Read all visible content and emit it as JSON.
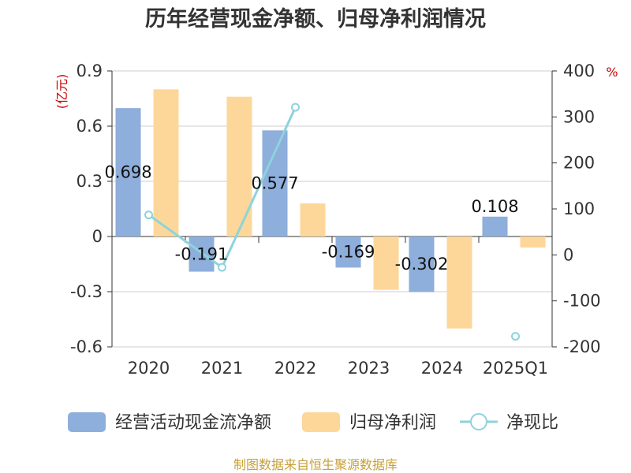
{
  "chart_data": {
    "type": "bar",
    "title": "历年经营现金净额、归母净利润情况",
    "categories": [
      "2020",
      "2021",
      "2022",
      "2023",
      "2024",
      "2025Q1"
    ],
    "left_axis": {
      "unit": "(亿元)",
      "ylim": [
        -0.6,
        0.9
      ],
      "ticks": [
        "0.9",
        "0.6",
        "0.3",
        "0",
        "-0.3",
        "-0.6"
      ]
    },
    "right_axis": {
      "unit": "%",
      "ylim": [
        -200,
        400
      ],
      "ticks": [
        "400",
        "300",
        "200",
        "100",
        "0",
        "-100",
        "-200"
      ]
    },
    "series": [
      {
        "name": "经营活动现金流净额",
        "type": "bar",
        "axis": "left",
        "color": "#8eaedb",
        "values": [
          0.698,
          -0.191,
          0.577,
          -0.169,
          -0.302,
          0.108
        ],
        "labels": [
          "0.698",
          "-0.191",
          "0.577",
          "-0.169",
          "-0.302",
          "0.108"
        ]
      },
      {
        "name": "归母净利润",
        "type": "bar",
        "axis": "left",
        "color": "#fdd79a",
        "values": [
          0.8,
          0.76,
          0.18,
          -0.29,
          -0.5,
          -0.06
        ]
      },
      {
        "name": "净现比",
        "type": "line",
        "axis": "right",
        "color": "#8dd3dc",
        "values": [
          87,
          -27,
          321,
          null,
          null,
          -177
        ]
      }
    ],
    "grid": true,
    "legend_position": "bottom"
  },
  "source_text": "制图数据来自恒生聚源数据库"
}
